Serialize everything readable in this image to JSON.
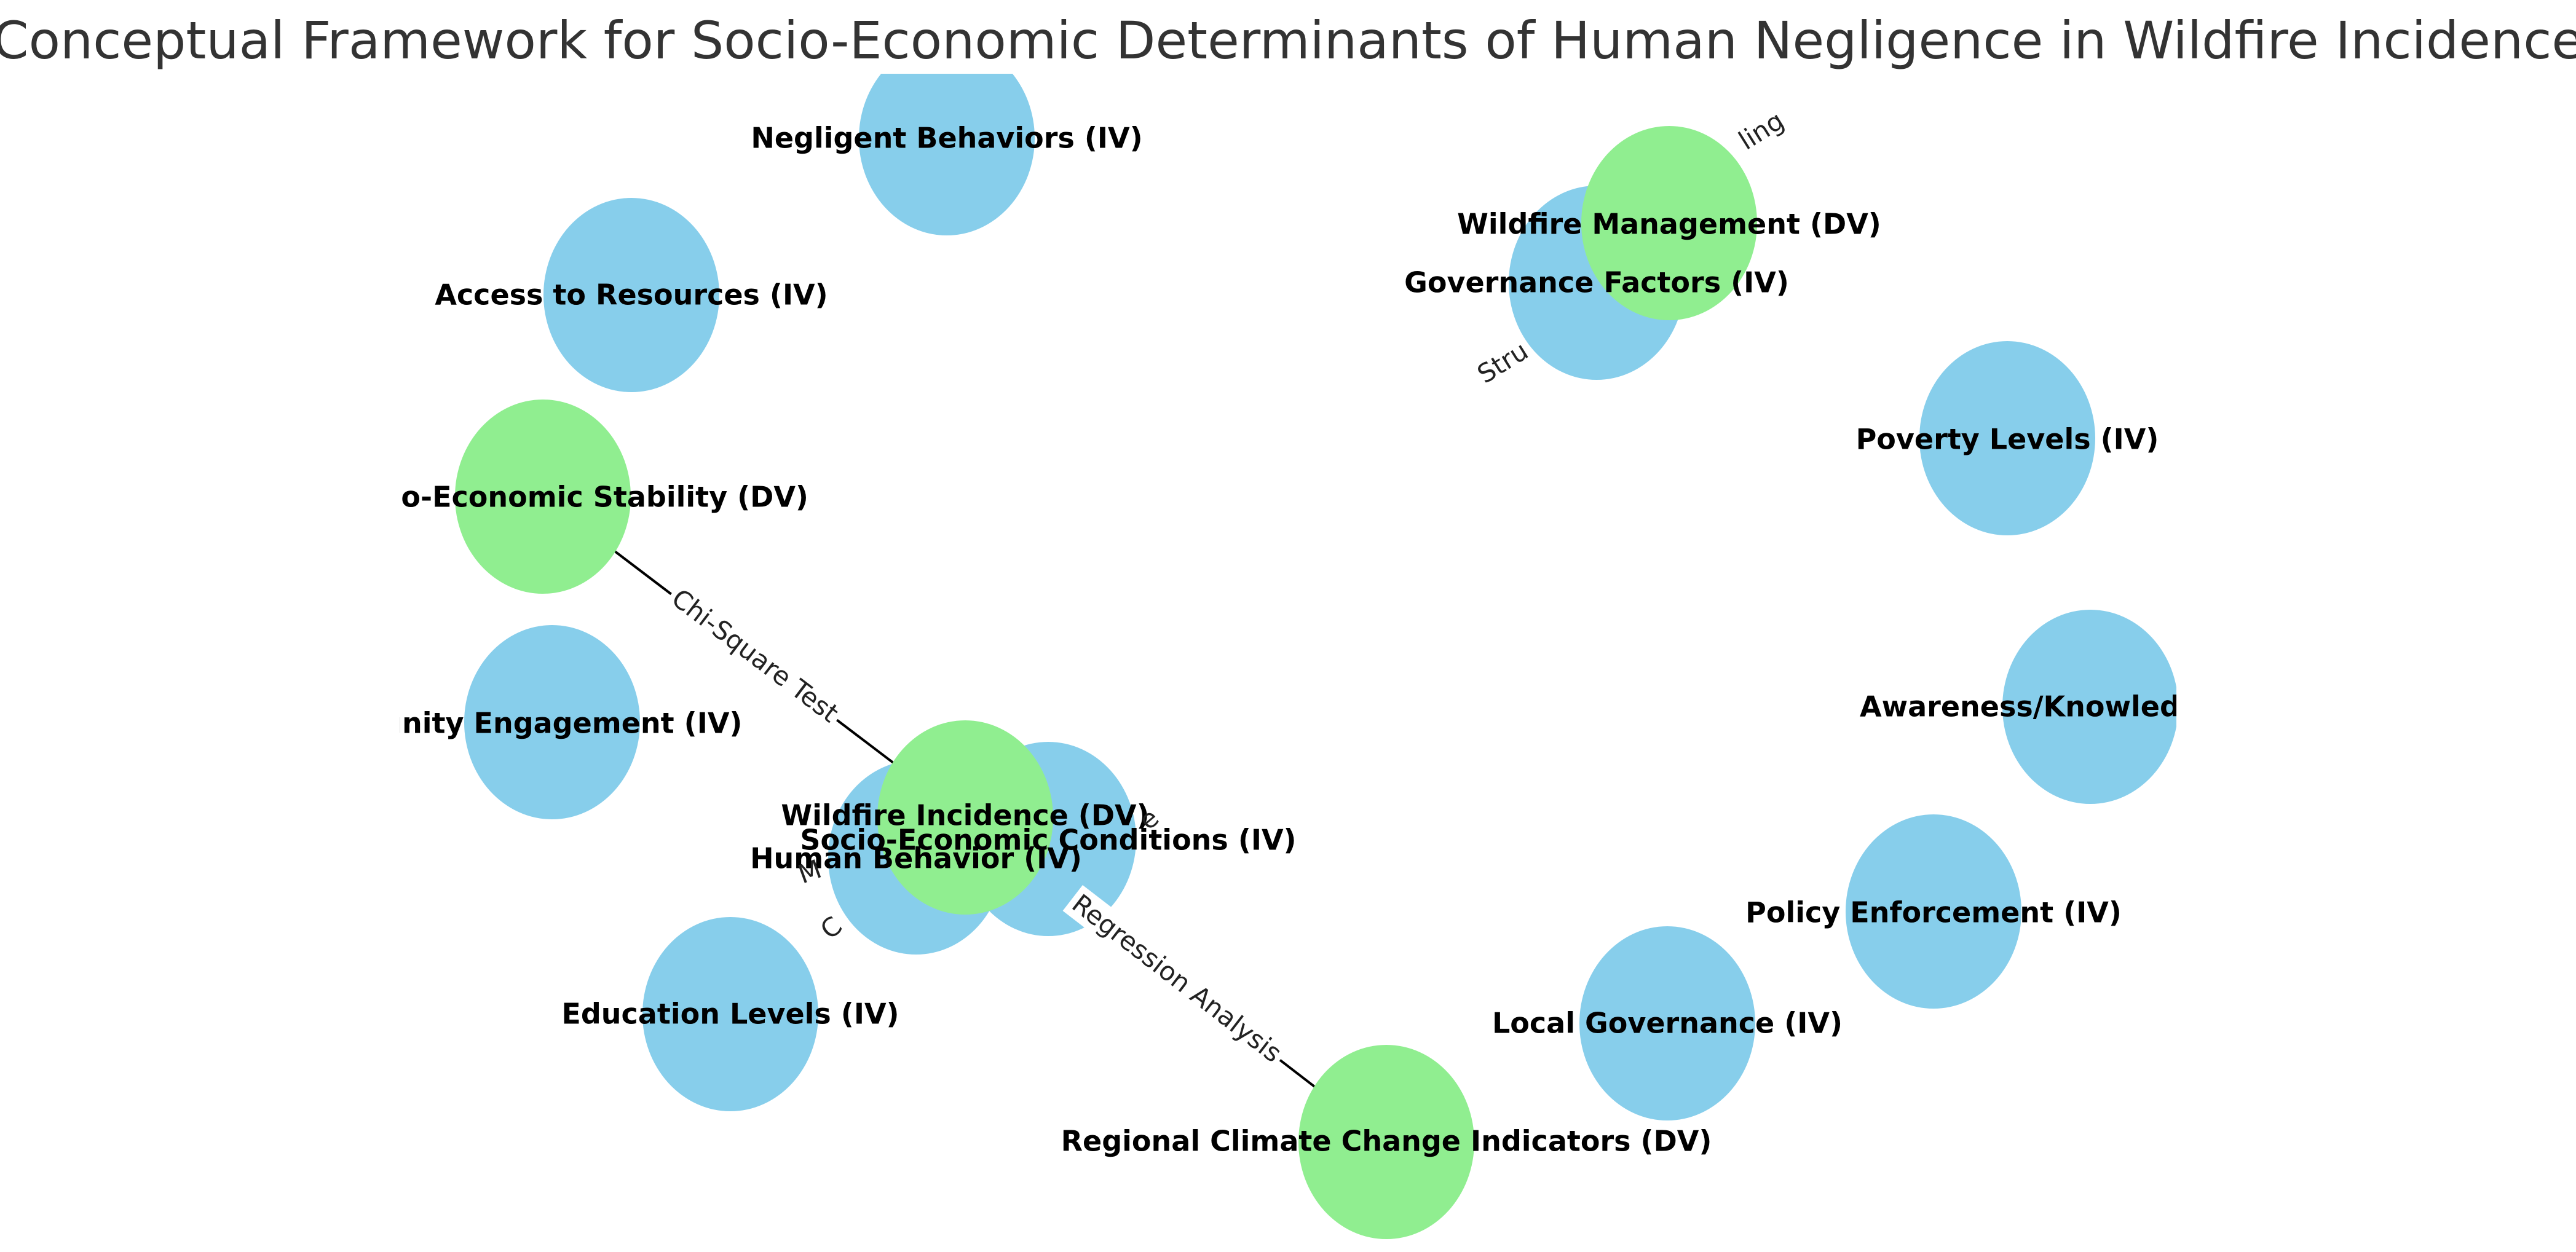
{
  "title": "Conceptual Framework for Socio-Economic Determinants of Human Negligence in Wildfire Incidence",
  "colors": {
    "iv_node": "#87CEEB",
    "dv_node": "#90EE90",
    "edge": "#000000",
    "background": "#ffffff"
  },
  "legend": {
    "iv_suffix": "(IV)",
    "dv_suffix": "(DV)"
  },
  "nodes": [
    {
      "id": "negligent_behaviors",
      "label": "Negligent Behaviors (IV)",
      "kind": "iv"
    },
    {
      "id": "access_to_resources",
      "label": "Access to Resources (IV)",
      "kind": "iv"
    },
    {
      "id": "socio_economic_stability",
      "label": "rns/Socio-Economic Stability (DV)",
      "kind": "dv"
    },
    {
      "id": "community_engagement",
      "label": "nunity Engagement (IV)",
      "kind": "iv"
    },
    {
      "id": "education_levels",
      "label": "Education Levels (IV)",
      "kind": "iv"
    },
    {
      "id": "human_behavior",
      "label": "Human Behavior (IV)",
      "kind": "iv"
    },
    {
      "id": "socio_economic_conditions",
      "label": "Socio-Economic Conditions (IV)",
      "kind": "iv"
    },
    {
      "id": "wildfire_incidence",
      "label": "Wildfire Incidence (DV)",
      "kind": "dv"
    },
    {
      "id": "regional_climate",
      "label": "Regional Climate Change Indicators (DV)",
      "kind": "dv"
    },
    {
      "id": "local_governance",
      "label": "Local Governance (IV)",
      "kind": "iv"
    },
    {
      "id": "policy_enforcement",
      "label": "Policy Enforcement (IV)",
      "kind": "iv"
    },
    {
      "id": "awareness_knowledge",
      "label": "Awareness/Knowledge about",
      "kind": "iv"
    },
    {
      "id": "poverty_levels",
      "label": "Poverty Levels (IV)",
      "kind": "iv"
    },
    {
      "id": "governance_factors",
      "label": "Governance Factors (IV)",
      "kind": "iv"
    },
    {
      "id": "wildfire_management",
      "label": "Wildfire Management (DV)",
      "kind": "dv"
    }
  ],
  "edges": [
    {
      "from": "socio_economic_stability",
      "to": "wildfire_incidence",
      "label": "Chi-Square Test"
    },
    {
      "from": "wildfire_incidence",
      "to": "regional_climate",
      "label": "Regression Analysis"
    },
    {
      "from": "governance_factors",
      "to": "wildfire_management",
      "label": ""
    }
  ],
  "fragments": [
    {
      "id": "frag_ling",
      "text": "ling"
    },
    {
      "id": "frag_stru",
      "text": "Stru"
    },
    {
      "id": "frag_m",
      "text": "M"
    },
    {
      "id": "frag_c",
      "text": "C"
    },
    {
      "id": "frag_e",
      "text": "e"
    }
  ]
}
